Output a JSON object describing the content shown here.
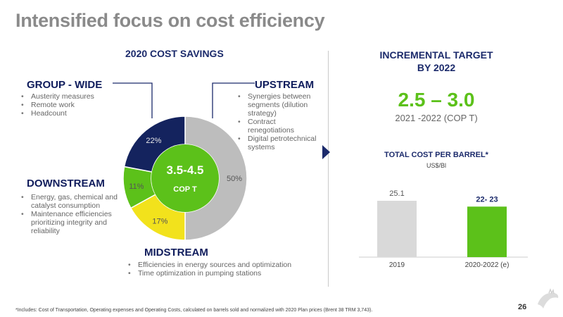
{
  "slide": {
    "title": "Intensified focus on cost efficiency",
    "page_number": "26",
    "footnote": "*Includes: Cost of Transportation, Operating expenses and Operating Costs, calculated on barrels sold and normalized with 2020 Plan prices (Brent 38  TRM 3,743)."
  },
  "savings": {
    "title": "2020 COST SAVINGS",
    "center_value": "3.5-4.5",
    "center_unit": "COP T",
    "colors": {
      "upstream": "#bdbdbd",
      "midstream": "#f2e21c",
      "downstream": "#5cc11a",
      "group_wide": "#14235e",
      "center": "#5cc11a"
    },
    "segments": [
      {
        "key": "upstream",
        "value": 50,
        "label": "50%"
      },
      {
        "key": "midstream",
        "value": 17,
        "label": "17%"
      },
      {
        "key": "downstream",
        "value": 11,
        "label": "11%"
      },
      {
        "key": "group_wide",
        "value": 22,
        "label": "22%"
      }
    ],
    "group_wide": {
      "heading": "GROUP - WIDE",
      "items": [
        "Austerity measures",
        "Remote work",
        "Headcount"
      ]
    },
    "upstream": {
      "heading": "UPSTREAM",
      "items": [
        "Synergies between segments (dilution strategy)",
        "Contract renegotiations",
        "Digital petrotechnical systems"
      ]
    },
    "downstream": {
      "heading": "DOWNSTREAM",
      "items": [
        "Energy, gas, chemical and catalyst consumption",
        "Maintenance efficiencies prioritizing integrity and reliability"
      ]
    },
    "midstream": {
      "heading": "MIDSTREAM",
      "items": [
        "Efficiencies in energy sources and optimization",
        "Time optimization in pumping stations"
      ]
    }
  },
  "target": {
    "title_line1": "INCREMENTAL TARGET",
    "title_line2": "BY 2022",
    "value": "2.5 – 3.0",
    "subtitle": "2021 -2022 (COP T)"
  },
  "chart_data": {
    "type": "bar",
    "title": "TOTAL COST PER BARREL*",
    "ylabel": "US$/Bl",
    "xlabel": "",
    "categories": [
      "2019",
      "2020-2022 (e)"
    ],
    "values": [
      25.1,
      22.5
    ],
    "value_labels": [
      "25.1",
      "22- 23"
    ],
    "colors": [
      "#d9d9d9",
      "#5cc11a"
    ],
    "ylim": [
      0,
      25.1
    ],
    "grid": false,
    "legend": "none"
  }
}
